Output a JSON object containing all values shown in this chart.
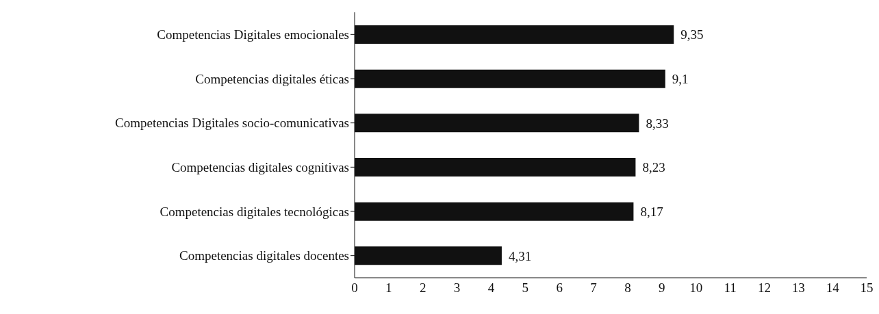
{
  "chart_data": {
    "type": "bar",
    "orientation": "horizontal",
    "categories": [
      "Competencias Digitales emocionales",
      "Competencias digitales éticas",
      "Competencias Digitales socio-comunicativas",
      "Competencias digitales cognitivas",
      "Competencias digitales tecnológicas",
      "Competencias digitales docentes"
    ],
    "values": [
      9.35,
      9.1,
      8.33,
      8.23,
      8.17,
      4.31
    ],
    "value_labels": [
      "9,35",
      "9,1",
      "8,33",
      "8,23",
      "8,17",
      "4,31"
    ],
    "color": "#111111",
    "xlim": [
      0,
      15
    ],
    "xticks": [
      0,
      1,
      2,
      3,
      4,
      5,
      6,
      7,
      8,
      9,
      10,
      11,
      12,
      13,
      14,
      15
    ],
    "grid": false,
    "legend": false
  }
}
